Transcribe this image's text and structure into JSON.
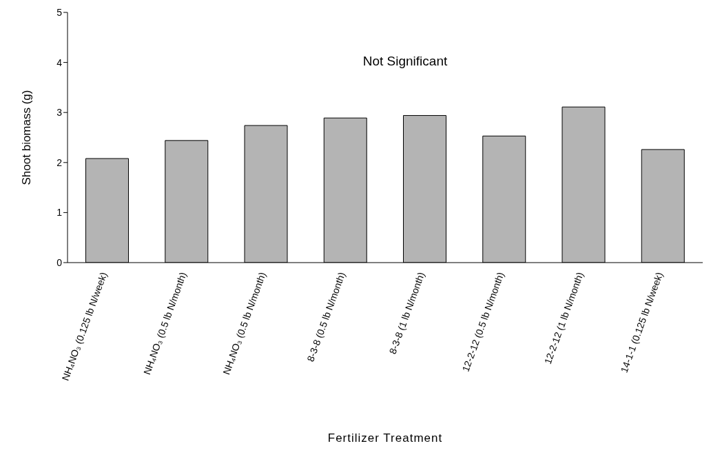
{
  "chart_data": {
    "type": "bar",
    "xlabel": "Fertilizer Treatment",
    "ylabel": "Shoot biomass (g)",
    "categories": [
      "NH₄NO₃ (0.125 lb N/week)",
      "NH₄NO₃ (0.5 lb N/month)",
      "NH₄NO₃ (0.5 lb N/month)",
      "8-3-8 (0.5 lb N/month)",
      "8-3-8 (1 lb N/month)",
      "12-2-12 (0.5 lb N/month)",
      "12-2-12 (1 lb N/month)",
      "14-1-1 (0.125 lb N/week)"
    ],
    "values": [
      2.08,
      2.44,
      2.74,
      2.89,
      2.94,
      2.53,
      3.11,
      2.26
    ],
    "color": "#b4b4b4",
    "ylim": [
      0,
      5
    ],
    "yticks": [
      0,
      1,
      2,
      3,
      4,
      5
    ],
    "grid": false,
    "annotations": [
      "Not Significant"
    ]
  }
}
